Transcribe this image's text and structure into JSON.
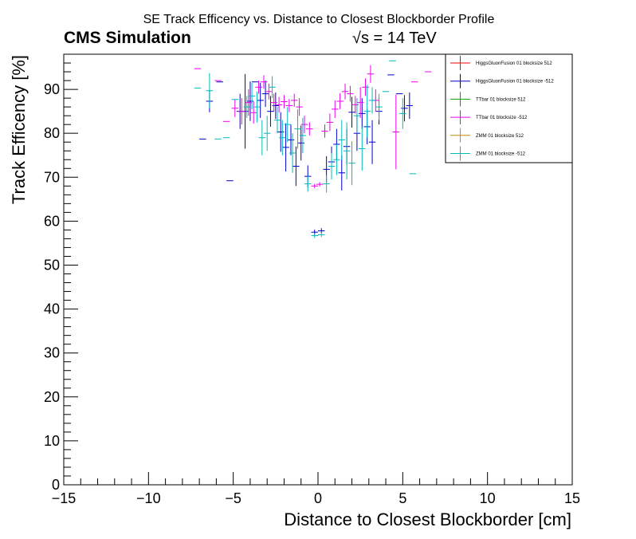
{
  "chart_data": {
    "type": "scatter",
    "title": "SE Track Efficency vs. Distance to Closest Blockborder Profile",
    "experiment_label": "CMS Simulation",
    "energy_label": "√s = 14 TeV",
    "xlabel": "Distance to Closest Blockborder [cm]",
    "ylabel": "Track Efficency [%]",
    "xlim": [
      -15,
      15
    ],
    "ylim": [
      0,
      98
    ],
    "xticks": [
      -15,
      -10,
      -5,
      0,
      5,
      10,
      15
    ],
    "xtick_labels": [
      "−15",
      "−10",
      "−5",
      "0",
      "5",
      "10",
      "15"
    ],
    "yticks": [
      0,
      10,
      20,
      30,
      40,
      50,
      60,
      70,
      80,
      90
    ],
    "grid": false,
    "legend_position": "top-right",
    "series": [
      {
        "name": "HiggsGluonFusion 01 blocksize 512",
        "color": "#ff0000",
        "points": []
      },
      {
        "name": "HiggsGluonFusion 01 blocksize -512",
        "color": "#0000cc",
        "points": [
          [
            -6.8,
            78.7,
            0.2,
            0.0
          ],
          [
            -6.4,
            87.3,
            0.2,
            2.5
          ],
          [
            -5.8,
            91.7,
            0.2,
            0.0
          ],
          [
            -5.2,
            69.2,
            0.2,
            0.0
          ],
          [
            -4.6,
            85.0,
            0.2,
            4.0
          ],
          [
            -4.3,
            85.0,
            0.2,
            8.5
          ],
          [
            -4.0,
            87.3,
            0.2,
            4.5
          ],
          [
            -3.7,
            91.7,
            0.2,
            0.0
          ],
          [
            -3.4,
            87.5,
            0.2,
            4.0
          ],
          [
            -3.1,
            89.0,
            0.2,
            3.0
          ],
          [
            -2.8,
            85.0,
            0.2,
            3.5
          ],
          [
            -2.5,
            86.3,
            0.2,
            3.0
          ],
          [
            -2.2,
            80.3,
            0.2,
            4.5
          ],
          [
            -1.9,
            76.8,
            0.2,
            5.5
          ],
          [
            -1.6,
            78.5,
            0.2,
            3.5
          ],
          [
            -1.3,
            72.5,
            0.2,
            4.5
          ],
          [
            -1.0,
            77.8,
            0.2,
            4.0
          ],
          [
            -0.6,
            70.2,
            0.2,
            2.5
          ],
          [
            -0.2,
            57.5,
            0.2,
            0.6
          ],
          [
            0.2,
            57.8,
            0.2,
            0.6
          ],
          [
            0.5,
            71.8,
            0.2,
            3.0
          ],
          [
            0.8,
            73.5,
            0.2,
            3.5
          ],
          [
            1.1,
            77.5,
            0.2,
            3.5
          ],
          [
            1.4,
            71.0,
            0.2,
            4.0
          ],
          [
            1.7,
            77.0,
            0.2,
            4.0
          ],
          [
            2.0,
            84.8,
            0.2,
            3.5
          ],
          [
            2.3,
            80.0,
            0.2,
            4.0
          ],
          [
            2.6,
            84.5,
            0.2,
            3.5
          ],
          [
            2.9,
            81.5,
            0.2,
            4.0
          ],
          [
            3.2,
            78.0,
            0.2,
            5.0
          ],
          [
            3.6,
            85.0,
            0.2,
            3.0
          ],
          [
            4.3,
            93.3,
            0.2,
            0.0
          ],
          [
            4.8,
            89.0,
            0.2,
            0.0
          ],
          [
            5.1,
            85.7,
            0.2,
            3.0
          ],
          [
            5.4,
            86.3,
            0.2,
            3.0
          ]
        ]
      },
      {
        "name": "TTbar 01 blocksize 512",
        "color": "#00a000",
        "points": []
      },
      {
        "name": "TTbar 01 blocksize -512",
        "color": "#ee00ee",
        "points": [
          [
            -7.1,
            94.7,
            0.2,
            0.0
          ],
          [
            -5.9,
            92.0,
            0.2,
            0.0
          ],
          [
            -5.4,
            82.7,
            0.2,
            0.0
          ],
          [
            -4.9,
            85.7,
            0.2,
            2.0
          ],
          [
            -4.5,
            85.0,
            0.2,
            3.0
          ],
          [
            -4.1,
            87.0,
            0.2,
            3.0
          ],
          [
            -3.8,
            84.7,
            0.2,
            2.5
          ],
          [
            -3.5,
            90.5,
            0.2,
            1.5
          ],
          [
            -3.2,
            91.7,
            0.2,
            1.5
          ],
          [
            -2.9,
            89.5,
            0.2,
            1.8
          ],
          [
            -2.6,
            87.0,
            0.2,
            2.0
          ],
          [
            -2.3,
            86.5,
            0.2,
            1.8
          ],
          [
            -2.0,
            87.2,
            0.2,
            1.5
          ],
          [
            -1.7,
            86.3,
            0.2,
            1.5
          ],
          [
            -1.4,
            87.5,
            0.2,
            1.5
          ],
          [
            -1.1,
            86.0,
            0.2,
            2.0
          ],
          [
            -0.8,
            82.0,
            0.2,
            2.0
          ],
          [
            -0.5,
            81.0,
            0.2,
            1.5
          ],
          [
            -0.2,
            68.0,
            0.2,
            0.5
          ],
          [
            0.1,
            68.4,
            0.2,
            0.5
          ],
          [
            0.4,
            80.5,
            0.2,
            1.5
          ],
          [
            0.7,
            82.5,
            0.2,
            2.0
          ],
          [
            1.0,
            85.5,
            0.2,
            2.0
          ],
          [
            1.3,
            87.3,
            0.2,
            1.8
          ],
          [
            1.6,
            89.5,
            0.2,
            1.8
          ],
          [
            1.9,
            89.0,
            0.2,
            1.8
          ],
          [
            2.2,
            86.5,
            0.2,
            2.0
          ],
          [
            2.5,
            87.0,
            0.2,
            3.5
          ],
          [
            2.8,
            90.5,
            0.2,
            2.0
          ],
          [
            3.1,
            93.5,
            0.2,
            2.0
          ],
          [
            3.4,
            87.5,
            0.2,
            2.5
          ],
          [
            4.6,
            80.3,
            0.2,
            8.5
          ],
          [
            5.7,
            91.7,
            0.2,
            0.0
          ],
          [
            6.5,
            94.0,
            0.2,
            0.0
          ]
        ]
      },
      {
        "name": "ZMM 01 blocksize 512",
        "color": "#cc8800",
        "points": []
      },
      {
        "name": "ZMM 01 blocksize -512",
        "color": "#00bbbb",
        "points": [
          [
            -7.1,
            90.3,
            0.2,
            0.0
          ],
          [
            -6.4,
            89.7,
            0.2,
            4.0
          ],
          [
            -5.9,
            78.7,
            0.2,
            0.0
          ],
          [
            -5.4,
            79.0,
            0.2,
            0.0
          ],
          [
            -4.9,
            87.7,
            0.2,
            0.0
          ],
          [
            -4.2,
            86.0,
            0.2,
            2.5
          ],
          [
            -3.9,
            88.5,
            0.2,
            3.0
          ],
          [
            -3.6,
            86.0,
            0.2,
            3.5
          ],
          [
            -3.3,
            79.0,
            0.2,
            4.0
          ],
          [
            -3.0,
            80.0,
            0.2,
            4.0
          ],
          [
            -2.7,
            90.5,
            0.2,
            2.5
          ],
          [
            -2.4,
            83.0,
            0.2,
            3.0
          ],
          [
            -2.1,
            79.0,
            0.2,
            4.0
          ],
          [
            -1.8,
            82.0,
            0.2,
            4.0
          ],
          [
            -1.5,
            75.5,
            0.2,
            4.5
          ],
          [
            -1.2,
            81.0,
            0.2,
            4.5
          ],
          [
            -0.9,
            79.5,
            0.2,
            4.0
          ],
          [
            -0.6,
            68.5,
            0.2,
            1.8
          ],
          [
            -0.2,
            56.7,
            0.2,
            0.5
          ],
          [
            0.2,
            56.9,
            0.2,
            0.5
          ],
          [
            0.5,
            68.5,
            0.2,
            2.0
          ],
          [
            0.8,
            72.5,
            0.2,
            3.0
          ],
          [
            1.1,
            74.0,
            0.2,
            3.5
          ],
          [
            1.4,
            78.5,
            0.2,
            4.5
          ],
          [
            1.7,
            76.0,
            0.2,
            6.5
          ],
          [
            2.0,
            73.2,
            0.2,
            5.0
          ],
          [
            2.3,
            84.0,
            0.2,
            4.0
          ],
          [
            2.6,
            76.5,
            0.2,
            5.0
          ],
          [
            2.9,
            85.0,
            0.2,
            6.0
          ],
          [
            3.2,
            87.5,
            0.2,
            3.0
          ],
          [
            3.6,
            86.0,
            0.2,
            3.0
          ],
          [
            4.0,
            89.5,
            0.2,
            0.0
          ],
          [
            4.4,
            96.5,
            0.2,
            0.0
          ],
          [
            5.0,
            84.5,
            0.2,
            3.5
          ],
          [
            5.6,
            70.8,
            0.2,
            0.0
          ]
        ]
      }
    ]
  }
}
